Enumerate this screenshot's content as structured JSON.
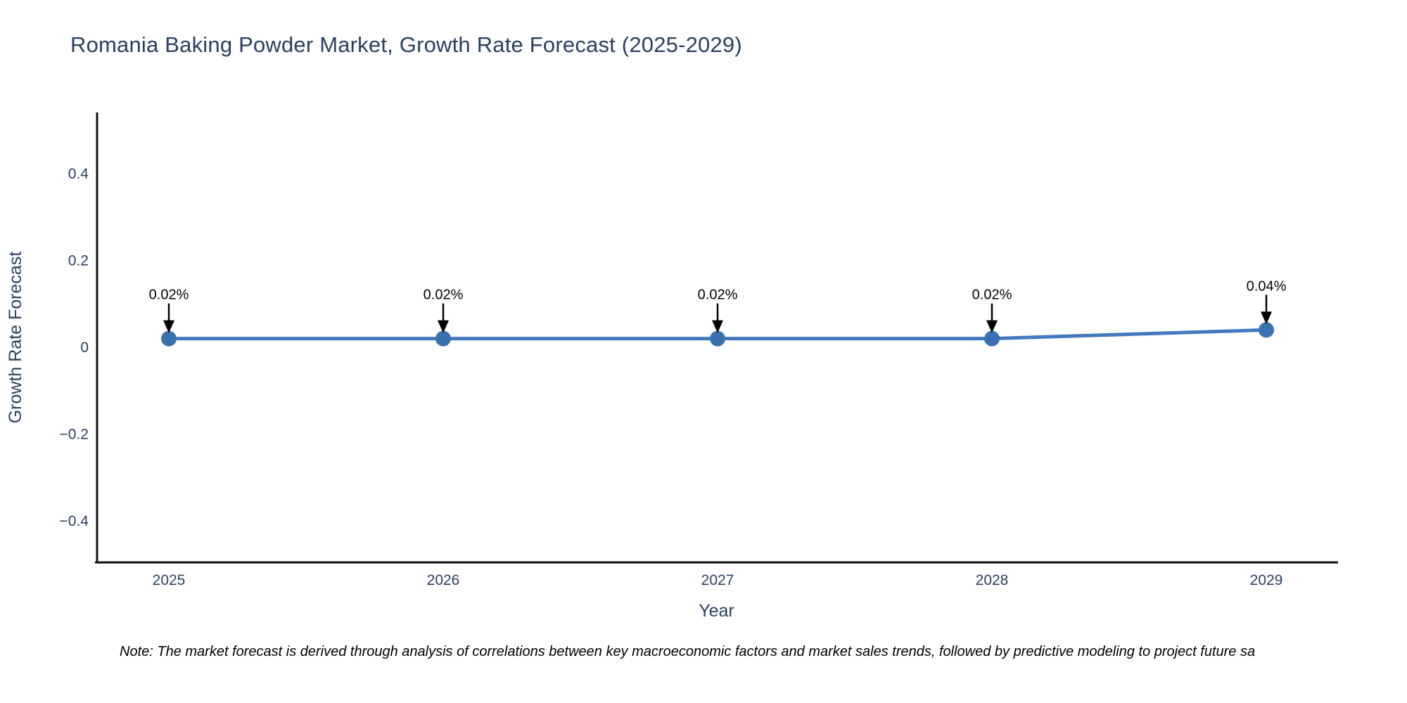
{
  "title": "Romania Baking Powder Market, Growth Rate Forecast (2025-2029)",
  "note": "Note: The market forecast is derived through analysis of correlations between key macroeconomic factors and market sales trends, followed by predictive modeling to project future sa",
  "chart_data": {
    "type": "line",
    "title": "Romania Baking Powder Market, Growth Rate Forecast (2025-2029)",
    "xlabel": "Year",
    "ylabel": "Growth Rate Forecast",
    "x": [
      "2025",
      "2026",
      "2027",
      "2028",
      "2029"
    ],
    "series": [
      {
        "name": "Growth Rate Forecast",
        "values": [
          0.02,
          0.02,
          0.02,
          0.02,
          0.04
        ]
      }
    ],
    "point_labels": [
      "0.02%",
      "0.02%",
      "0.02%",
      "0.02%",
      "0.04%"
    ],
    "y_ticks": {
      "values": [
        0.4,
        0.2,
        0,
        -0.2,
        -0.4
      ],
      "labels": [
        "0.4",
        "0.2",
        "0",
        "−0.2",
        "−0.4"
      ]
    },
    "ylim": [
      -0.5,
      0.54
    ],
    "grid": false,
    "legend": "none",
    "annotation_arrow": "down",
    "colors": {
      "line": "#4379bd",
      "marker": "#3a72b0",
      "axis": "#111111",
      "text": "#2a3f5f",
      "annotation": "#000000",
      "background": "#ffffff"
    }
  }
}
